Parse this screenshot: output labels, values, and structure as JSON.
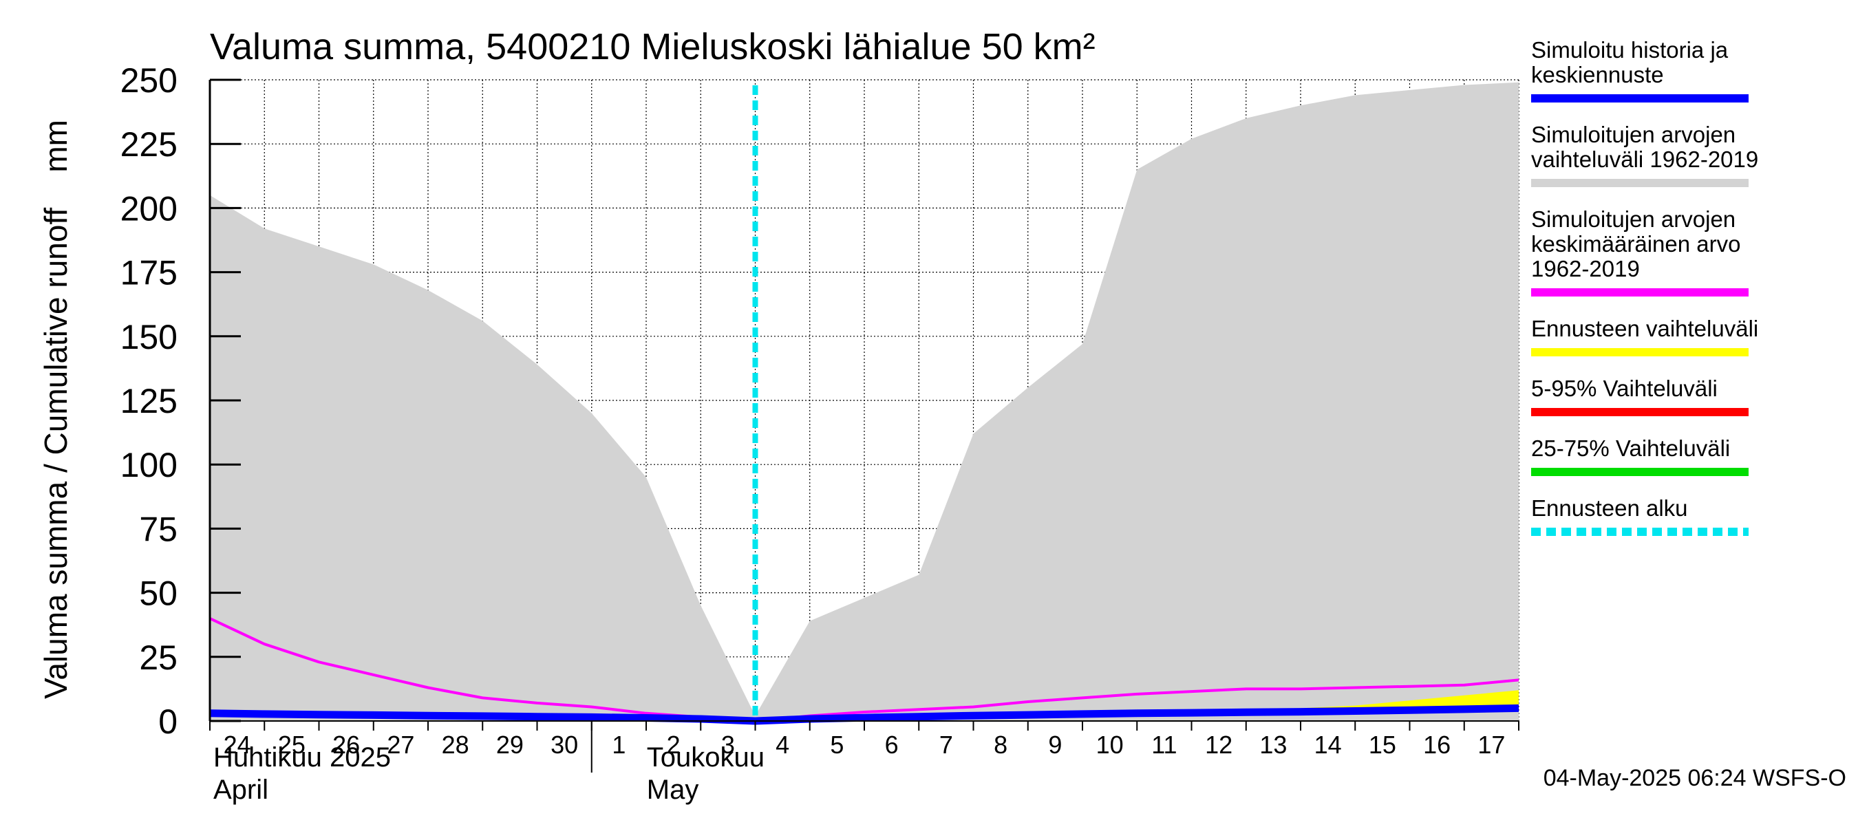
{
  "chart_data": {
    "type": "area",
    "title": "Valuma summa, 5400210 Mieluskoski lähialue 50 km²",
    "ylabel": "Valuma summa / Cumulative runoff    mm",
    "ylim": [
      0,
      250
    ],
    "yticks": [
      0,
      25,
      50,
      75,
      100,
      125,
      150,
      175,
      200,
      225,
      250
    ],
    "x_range": [
      "2025-04-24",
      "2025-05-18"
    ],
    "x_day_labels": [
      "24",
      "25",
      "26",
      "27",
      "28",
      "29",
      "30",
      "1",
      "2",
      "3",
      "4",
      "5",
      "6",
      "7",
      "8",
      "9",
      "10",
      "11",
      "12",
      "13",
      "14",
      "15",
      "16",
      "17"
    ],
    "month_labels": [
      {
        "fi": "Huhtikuu  2025",
        "en": "April",
        "start": "2025-04-24"
      },
      {
        "fi": "Toukokuu",
        "en": "May",
        "start": "2025-05-01"
      }
    ],
    "grid": true,
    "forecast_start": "2025-05-04",
    "series": [
      {
        "name": "Simuloitujen arvojen vaihteluväli 1962-2019",
        "color": "#d3d3d3",
        "kind": "band",
        "x": [
          "2025-04-24",
          "2025-04-25",
          "2025-04-26",
          "2025-04-27",
          "2025-04-28",
          "2025-04-29",
          "2025-04-30",
          "2025-05-01",
          "2025-05-02",
          "2025-05-03",
          "2025-05-04",
          "2025-05-05",
          "2025-05-06",
          "2025-05-07",
          "2025-05-08",
          "2025-05-09",
          "2025-05-10",
          "2025-05-11",
          "2025-05-12",
          "2025-05-13",
          "2025-05-14",
          "2025-05-15",
          "2025-05-16",
          "2025-05-17",
          "2025-05-18"
        ],
        "upper": [
          205,
          192,
          185,
          178,
          168,
          156,
          139,
          120,
          95,
          45,
          2,
          39,
          48,
          57,
          112,
          130,
          147,
          215,
          227,
          235,
          240,
          244,
          246,
          248,
          249
        ],
        "lower": [
          0,
          0,
          0,
          0,
          0,
          0,
          0,
          0,
          0,
          0,
          0,
          0,
          0,
          0,
          0,
          0,
          0,
          0,
          0,
          0,
          0,
          0,
          0,
          0,
          0
        ]
      },
      {
        "name": "Simuloitujen arvojen keskimääräinen arvo 1962-2019",
        "color": "#ff00ff",
        "kind": "line",
        "x": [
          "2025-04-24",
          "2025-04-25",
          "2025-04-26",
          "2025-04-27",
          "2025-04-28",
          "2025-04-29",
          "2025-04-30",
          "2025-05-01",
          "2025-05-02",
          "2025-05-03",
          "2025-05-04",
          "2025-05-05",
          "2025-05-06",
          "2025-05-07",
          "2025-05-08",
          "2025-05-09",
          "2025-05-10",
          "2025-05-11",
          "2025-05-12",
          "2025-05-13",
          "2025-05-14",
          "2025-05-15",
          "2025-05-16",
          "2025-05-17",
          "2025-05-18"
        ],
        "values": [
          40,
          30,
          23,
          18,
          13,
          9,
          7,
          5.5,
          3,
          1.5,
          0,
          2,
          3.5,
          4.5,
          5.5,
          7.5,
          9,
          10.5,
          11.5,
          12.5,
          12.5,
          13,
          13.5,
          14,
          16
        ]
      },
      {
        "name": "Ennusteen vaihteluväli",
        "color": "#ffff00",
        "kind": "band",
        "x": [
          "2025-05-04",
          "2025-05-05",
          "2025-05-06",
          "2025-05-07",
          "2025-05-08",
          "2025-05-09",
          "2025-05-10",
          "2025-05-11",
          "2025-05-12",
          "2025-05-13",
          "2025-05-14",
          "2025-05-15",
          "2025-05-16",
          "2025-05-17",
          "2025-05-18"
        ],
        "upper": [
          0,
          1,
          1.5,
          2,
          2.5,
          3,
          3.3,
          3.6,
          4,
          4.5,
          5,
          6,
          8,
          10,
          12
        ],
        "lower": [
          0,
          0.5,
          1,
          1.3,
          1.6,
          2,
          2.3,
          2.6,
          2.8,
          3,
          3.2,
          3.4,
          3.6,
          3.8,
          4
        ]
      },
      {
        "name": "5-95% Vaihteluväli",
        "color": "#ff0000",
        "kind": "band",
        "x": [
          "2025-05-04",
          "2025-05-18"
        ],
        "upper": [
          0,
          6
        ],
        "lower": [
          0,
          4.5
        ]
      },
      {
        "name": "25-75% Vaihteluväli",
        "color": "#00dd00",
        "kind": "band",
        "x": [
          "2025-05-04",
          "2025-05-18"
        ],
        "upper": [
          0,
          5.7
        ],
        "lower": [
          0,
          4.8
        ]
      },
      {
        "name": "Simuloitu historia ja keskiennuste",
        "color": "#0000ff",
        "kind": "line",
        "x": [
          "2025-04-24",
          "2025-04-25",
          "2025-04-26",
          "2025-04-27",
          "2025-04-28",
          "2025-04-29",
          "2025-04-30",
          "2025-05-01",
          "2025-05-02",
          "2025-05-03",
          "2025-05-04",
          "2025-05-05",
          "2025-05-06",
          "2025-05-07",
          "2025-05-08",
          "2025-05-09",
          "2025-05-10",
          "2025-05-11",
          "2025-05-12",
          "2025-05-13",
          "2025-05-14",
          "2025-05-15",
          "2025-05-16",
          "2025-05-17",
          "2025-05-18"
        ],
        "values": [
          3,
          2.7,
          2.5,
          2.3,
          2.1,
          1.9,
          1.7,
          1.5,
          1.2,
          0.8,
          0,
          0.8,
          1.3,
          1.7,
          2.1,
          2.4,
          2.7,
          3,
          3.2,
          3.4,
          3.6,
          3.9,
          4.2,
          4.6,
          5
        ]
      }
    ],
    "legend_placement": "right",
    "legend": [
      {
        "lines": [
          "Simuloitu historia ja",
          "keskiennuste"
        ],
        "color": "#0000ff",
        "style": "solid"
      },
      {
        "lines": [
          "Simuloitujen arvojen",
          "vaihteluväli 1962-2019"
        ],
        "color": "#d3d3d3",
        "style": "solid"
      },
      {
        "lines": [
          "Simuloitujen arvojen",
          "keskimääräinen arvo",
          "   1962-2019"
        ],
        "color": "#ff00ff",
        "style": "solid"
      },
      {
        "lines": [
          "Ennusteen vaihteluväli"
        ],
        "color": "#ffff00",
        "style": "solid"
      },
      {
        "lines": [
          "5-95% Vaihteluväli"
        ],
        "color": "#ff0000",
        "style": "solid"
      },
      {
        "lines": [
          "25-75% Vaihteluväli"
        ],
        "color": "#00dd00",
        "style": "solid"
      },
      {
        "lines": [
          "Ennusteen alku"
        ],
        "color": "#00e5ee",
        "style": "dashed"
      }
    ],
    "timestamp": "04-May-2025 06:24 WSFS-O"
  }
}
